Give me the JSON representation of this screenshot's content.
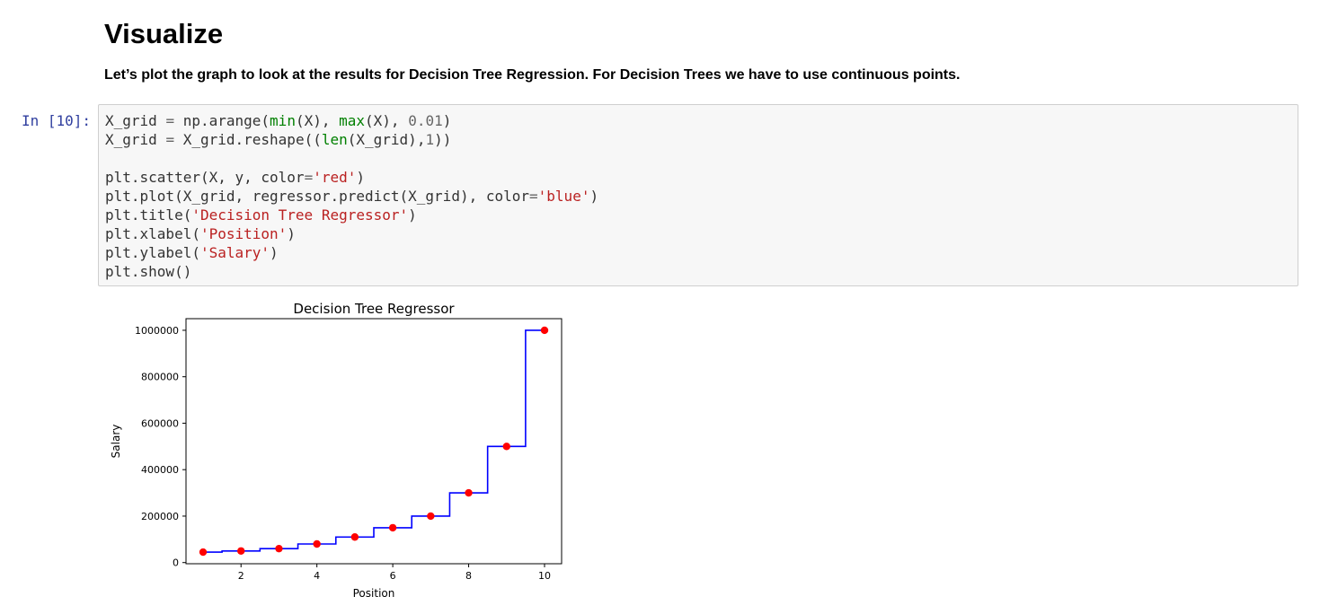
{
  "markdown": {
    "heading": "Visualize",
    "paragraph": "Let’s plot the graph to look at the results for Decision Tree Regression. For Decision Trees we have to use continuous points."
  },
  "cell": {
    "prompt": "In [10]:",
    "lines": [
      [
        {
          "t": "X_grid "
        },
        {
          "t": "=",
          "c": "op"
        },
        {
          "t": " np.arange("
        },
        {
          "t": "min",
          "c": "fn"
        },
        {
          "t": "(X), "
        },
        {
          "t": "max",
          "c": "fn"
        },
        {
          "t": "(X), "
        },
        {
          "t": "0.01",
          "c": "num"
        },
        {
          "t": ")"
        }
      ],
      [
        {
          "t": "X_grid "
        },
        {
          "t": "=",
          "c": "op"
        },
        {
          "t": " X_grid.reshape(("
        },
        {
          "t": "len",
          "c": "fn"
        },
        {
          "t": "(X_grid),"
        },
        {
          "t": "1",
          "c": "num"
        },
        {
          "t": "))"
        }
      ],
      [],
      [
        {
          "t": "plt.scatter(X, y, color"
        },
        {
          "t": "=",
          "c": "op"
        },
        {
          "t": "'red'",
          "c": "str"
        },
        {
          "t": ")"
        }
      ],
      [
        {
          "t": "plt.plot(X_grid, regressor.predict(X_grid), color"
        },
        {
          "t": "=",
          "c": "op"
        },
        {
          "t": "'blue'",
          "c": "str"
        },
        {
          "t": ")"
        }
      ],
      [
        {
          "t": "plt.title("
        },
        {
          "t": "'Decision Tree Regressor'",
          "c": "str"
        },
        {
          "t": ")"
        }
      ],
      [
        {
          "t": "plt.xlabel("
        },
        {
          "t": "'Position'",
          "c": "str"
        },
        {
          "t": ")"
        }
      ],
      [
        {
          "t": "plt.ylabel("
        },
        {
          "t": "'Salary'",
          "c": "str"
        },
        {
          "t": ")"
        }
      ],
      [
        {
          "t": "plt.show()"
        }
      ]
    ]
  },
  "chart_data": {
    "type": "line",
    "title": "Decision Tree Regressor",
    "xlabel": "Position",
    "ylabel": "Salary",
    "xlim": [
      0.55,
      10.45
    ],
    "ylim": [
      -5000,
      1050000
    ],
    "x_ticks": [
      2,
      4,
      6,
      8,
      10
    ],
    "y_ticks": [
      0,
      200000,
      400000,
      600000,
      800000,
      1000000
    ],
    "grid": false,
    "points": {
      "color": "#ff0000",
      "x": [
        1,
        2,
        3,
        4,
        5,
        6,
        7,
        8,
        9,
        10
      ],
      "y": [
        45000,
        50000,
        60000,
        80000,
        110000,
        150000,
        200000,
        300000,
        500000,
        1000000
      ]
    },
    "step_line": {
      "color": "#0000ff",
      "x_range": [
        1,
        10
      ],
      "edges": [
        1.5,
        2.5,
        3.5,
        4.5,
        5.5,
        6.5,
        7.5,
        8.5,
        9.5
      ],
      "levels": [
        45000,
        50000,
        60000,
        80000,
        110000,
        150000,
        200000,
        300000,
        500000,
        1000000
      ]
    }
  }
}
